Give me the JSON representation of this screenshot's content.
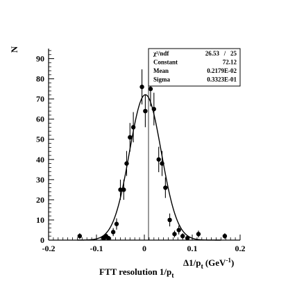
{
  "chart_data": {
    "type": "scatter",
    "xlabel_main": "Δ1/p",
    "xlabel_sub": "t",
    "xlabel_unit": "(GeV",
    "xlabel_unit_sup": "-1",
    "xlabel_unit_close": ")",
    "ylabel": "N",
    "caption_main": "FTT resolution 1/p",
    "caption_sub": "t",
    "xlim": [
      -0.2,
      0.2
    ],
    "ylim": [
      0,
      95
    ],
    "x_ticks": [
      -0.2,
      -0.1,
      0,
      0.1,
      0.2
    ],
    "x_tick_labels": [
      "-0.2",
      "-0.1",
      "0",
      "0.1",
      "0.2"
    ],
    "y_ticks": [
      0,
      10,
      20,
      30,
      40,
      50,
      60,
      70,
      80,
      90
    ],
    "y_tick_labels": [
      "0",
      "10",
      "20",
      "30",
      "40",
      "50",
      "60",
      "70",
      "80",
      "90"
    ],
    "grid": false,
    "points": [
      {
        "x": -0.135,
        "y": 2,
        "err": 1.4
      },
      {
        "x": -0.085,
        "y": 1,
        "err": 1.0
      },
      {
        "x": -0.08,
        "y": 2,
        "err": 1.4
      },
      {
        "x": -0.075,
        "y": 1,
        "err": 1.0
      },
      {
        "x": -0.065,
        "y": 4,
        "err": 2.0
      },
      {
        "x": -0.058,
        "y": 8,
        "err": 2.8
      },
      {
        "x": -0.05,
        "y": 25,
        "err": 5.0
      },
      {
        "x": -0.043,
        "y": 25,
        "err": 5.0
      },
      {
        "x": -0.037,
        "y": 38,
        "err": 6.2
      },
      {
        "x": -0.03,
        "y": 51,
        "err": 7.1
      },
      {
        "x": -0.023,
        "y": 56,
        "err": 7.5
      },
      {
        "x": -0.005,
        "y": 76,
        "err": 8.7
      },
      {
        "x": 0.002,
        "y": 64,
        "err": 8.0
      },
      {
        "x": 0.013,
        "y": 75,
        "err": 8.7
      },
      {
        "x": 0.02,
        "y": 65,
        "err": 8.1
      },
      {
        "x": 0.03,
        "y": 40,
        "err": 6.3
      },
      {
        "x": 0.037,
        "y": 38,
        "err": 6.2
      },
      {
        "x": 0.044,
        "y": 26,
        "err": 5.1
      },
      {
        "x": 0.053,
        "y": 10,
        "err": 3.2
      },
      {
        "x": 0.063,
        "y": 3,
        "err": 1.7
      },
      {
        "x": 0.072,
        "y": 5,
        "err": 2.2
      },
      {
        "x": 0.08,
        "y": 2,
        "err": 1.4
      },
      {
        "x": 0.09,
        "y": 1,
        "err": 1.0
      },
      {
        "x": 0.113,
        "y": 3,
        "err": 1.7
      },
      {
        "x": 0.168,
        "y": 2,
        "err": 1.4
      }
    ],
    "fit": {
      "function": "gaussian",
      "constant": 72.12,
      "mean": 0.002179,
      "sigma": 0.03323
    },
    "stats_box": {
      "rows": [
        {
          "key": "χ²/ndf",
          "value": "26.53   /   25"
        },
        {
          "key": "Constant",
          "value": "72.12"
        },
        {
          "key": "Mean",
          "value": "0.2179E-02"
        },
        {
          "key": "Sigma",
          "value": "0.3323E-01"
        }
      ]
    }
  }
}
